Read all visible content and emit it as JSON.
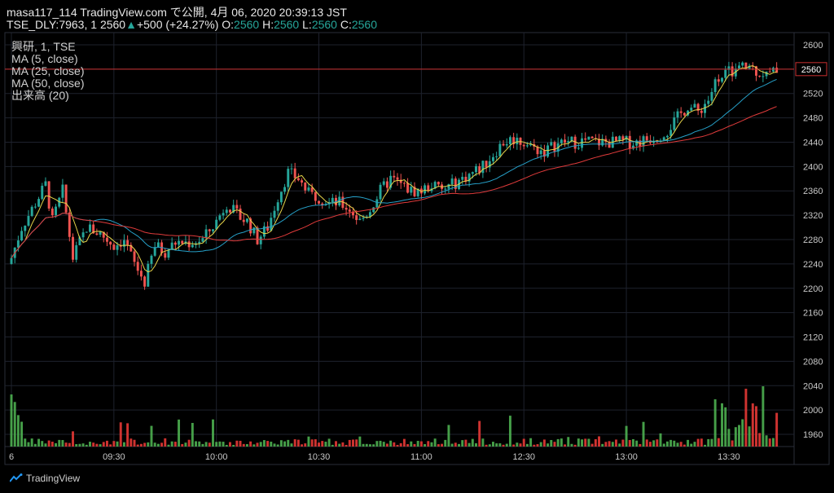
{
  "header": {
    "line1": "masa117_114 TradingView.com で公開, 4月 06, 2020 20:39:13 JST",
    "symbol": "TSE_DLY:7963, 1",
    "last": "2560",
    "arrow": "▲",
    "change": "+500 (+24.27%)",
    "o_label": "O:",
    "o": "2560",
    "h_label": "H:",
    "h": "2560",
    "l_label": "L:",
    "l": "2560",
    "c_label": "C:",
    "c": "2560"
  },
  "legend": [
    "興研, 1, TSE",
    "MA (5, close)",
    "MA (25, close)",
    "MA (50, close)",
    "出来高 (20)"
  ],
  "brand": "TradingView",
  "colors": {
    "bg": "#000000",
    "grid": "#1e222d",
    "up": "#26a69a",
    "down": "#ef5350",
    "vol_up": "#4caf50",
    "vol_down": "#e53935",
    "ma5": "#e6d44a",
    "ma25": "#26a0c8",
    "ma50": "#e03b3b",
    "price_line": "#c93030"
  },
  "chart_data": {
    "type": "candlestick",
    "last_price": 2560,
    "price_label": "2560",
    "ylim": [
      1940,
      2620
    ],
    "y_ticks": [
      1960,
      2000,
      2040,
      2080,
      2120,
      2160,
      2200,
      2240,
      2280,
      2320,
      2360,
      2400,
      2440,
      2480,
      2520,
      2560,
      2600
    ],
    "x_ticks": [
      {
        "label": "6",
        "bar": 0
      },
      {
        "label": "09:30",
        "bar": 30
      },
      {
        "label": "10:00",
        "bar": 60
      },
      {
        "label": "10:30",
        "bar": 90
      },
      {
        "label": "11:00",
        "bar": 120
      },
      {
        "label": "12:30",
        "bar": 150
      },
      {
        "label": "13:00",
        "bar": 180
      },
      {
        "label": "13:30",
        "bar": 210
      }
    ],
    "bars": 225,
    "close_path": [
      [
        0,
        2250
      ],
      [
        3,
        2300
      ],
      [
        7,
        2340
      ],
      [
        10,
        2370
      ],
      [
        12,
        2310
      ],
      [
        15,
        2360
      ],
      [
        18,
        2250
      ],
      [
        22,
        2300
      ],
      [
        26,
        2290
      ],
      [
        30,
        2270
      ],
      [
        33,
        2280
      ],
      [
        36,
        2240
      ],
      [
        39,
        2210
      ],
      [
        42,
        2270
      ],
      [
        45,
        2260
      ],
      [
        48,
        2275
      ],
      [
        52,
        2275
      ],
      [
        56,
        2280
      ],
      [
        60,
        2310
      ],
      [
        63,
        2340
      ],
      [
        66,
        2320
      ],
      [
        69,
        2310
      ],
      [
        72,
        2280
      ],
      [
        75,
        2300
      ],
      [
        78,
        2350
      ],
      [
        81,
        2390
      ],
      [
        84,
        2380
      ],
      [
        87,
        2355
      ],
      [
        90,
        2350
      ],
      [
        93,
        2340
      ],
      [
        96,
        2340
      ],
      [
        99,
        2330
      ],
      [
        102,
        2310
      ],
      [
        105,
        2330
      ],
      [
        108,
        2360
      ],
      [
        111,
        2380
      ],
      [
        114,
        2370
      ],
      [
        117,
        2360
      ],
      [
        120,
        2360
      ],
      [
        123,
        2370
      ],
      [
        126,
        2360
      ],
      [
        129,
        2370
      ],
      [
        132,
        2380
      ],
      [
        135,
        2390
      ],
      [
        138,
        2400
      ],
      [
        141,
        2420
      ],
      [
        144,
        2440
      ],
      [
        147,
        2445
      ],
      [
        150,
        2440
      ],
      [
        153,
        2430
      ],
      [
        156,
        2425
      ],
      [
        159,
        2435
      ],
      [
        162,
        2440
      ],
      [
        165,
        2440
      ],
      [
        168,
        2442
      ],
      [
        171,
        2440
      ],
      [
        174,
        2440
      ],
      [
        177,
        2440
      ],
      [
        180,
        2440
      ],
      [
        183,
        2440
      ],
      [
        186,
        2445
      ],
      [
        189,
        2450
      ],
      [
        192,
        2460
      ],
      [
        195,
        2480
      ],
      [
        198,
        2500
      ],
      [
        201,
        2490
      ],
      [
        204,
        2510
      ],
      [
        207,
        2550
      ],
      [
        210,
        2555
      ],
      [
        213,
        2560
      ],
      [
        216,
        2565
      ],
      [
        219,
        2555
      ],
      [
        222,
        2550
      ],
      [
        224,
        2560
      ]
    ],
    "series": [
      {
        "name": "MA (5, close)"
      },
      {
        "name": "MA (25, close)"
      },
      {
        "name": "MA (50, close)"
      },
      {
        "name": "出来高 (20)"
      }
    ]
  }
}
